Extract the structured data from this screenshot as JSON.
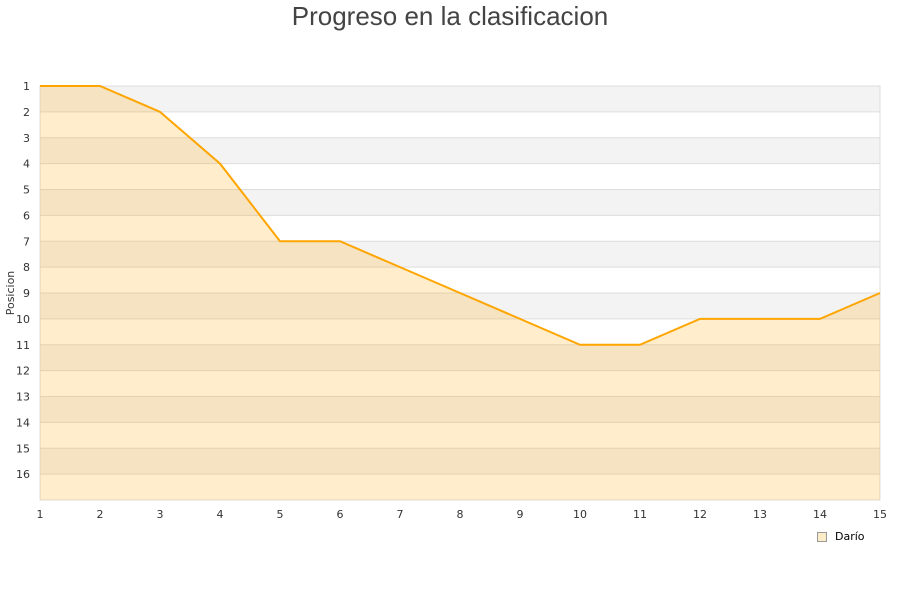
{
  "chart_data": {
    "type": "area",
    "title": "Progreso en la clasificacion",
    "xlabel": "",
    "ylabel": "Posicion",
    "x": [
      1,
      2,
      3,
      4,
      5,
      6,
      7,
      8,
      9,
      10,
      11,
      12,
      13,
      14,
      15
    ],
    "series": [
      {
        "name": "Darío",
        "values": [
          1,
          1,
          2,
          4,
          7,
          7,
          8,
          9,
          10,
          11,
          11,
          10,
          10,
          10,
          9
        ],
        "color": "#ffa500"
      }
    ],
    "xlim": [
      1,
      15
    ],
    "ylim": [
      1,
      17
    ],
    "y_inverted": true,
    "yticks": [
      1,
      2,
      3,
      4,
      5,
      6,
      7,
      8,
      9,
      10,
      11,
      12,
      13,
      14,
      15,
      16
    ],
    "xticks": [
      1,
      2,
      3,
      4,
      5,
      6,
      7,
      8,
      9,
      10,
      11,
      12,
      13,
      14,
      15
    ],
    "grid": "horizontal alternating bands",
    "legend_position": "bottom-right"
  }
}
